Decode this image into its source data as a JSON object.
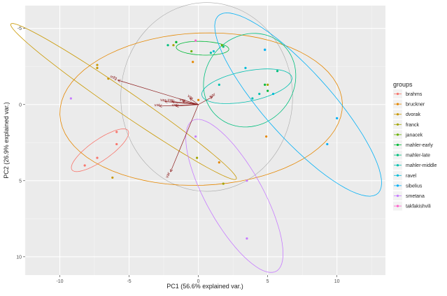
{
  "chart_data": {
    "type": "scatter",
    "title": "",
    "xlabel": "PC1 (56.6% explained var.)",
    "ylabel": "PC2 (26.9% explained var.)",
    "xlim": [
      -12.5,
      13.5
    ],
    "ylim": [
      -6.5,
      11.2
    ],
    "y_reversed": true,
    "x_ticks": [
      -10,
      -5,
      0,
      5,
      10
    ],
    "y_ticks": [
      -5,
      0,
      5,
      10
    ],
    "grid": true,
    "legend_title": "groups",
    "legend_position": "right",
    "series": [
      {
        "name": "brahms",
        "color": "#F8766D",
        "points": [
          [
            -8.2,
            4.0
          ],
          [
            -7.3,
            3.5
          ],
          [
            -5.9,
            1.8
          ],
          [
            -5.9,
            2.6
          ]
        ]
      },
      {
        "name": "bruckner",
        "color": "#E58700",
        "points": [
          [
            -0.4,
            -2.8
          ],
          [
            0.0,
            -0.3
          ],
          [
            1.5,
            3.8
          ],
          [
            4.9,
            2.1
          ]
        ]
      },
      {
        "name": "dvorak",
        "color": "#C99800",
        "points": [
          [
            -7.3,
            -2.6
          ],
          [
            -7.3,
            -2.4
          ],
          [
            -6.5,
            -1.7
          ],
          [
            -6.2,
            4.8
          ]
        ]
      },
      {
        "name": "franck",
        "color": "#A3A500",
        "points": [
          [
            -1.8,
            -3.9
          ],
          [
            -0.1,
            3.5
          ],
          [
            1.8,
            5.2
          ],
          [
            5.0,
            -1.3
          ]
        ]
      },
      {
        "name": "janacek",
        "color": "#6BB100",
        "points": [
          [
            -1.6,
            -4.1
          ],
          [
            -0.5,
            -3.5
          ],
          [
            1.7,
            -3.9
          ]
        ]
      },
      {
        "name": "mahler-early",
        "color": "#00BA38",
        "points": [
          [
            -1.6,
            -4.1
          ],
          [
            4.8,
            -1.3
          ],
          [
            5.0,
            -0.9
          ]
        ]
      },
      {
        "name": "mahler-late",
        "color": "#00BF7D",
        "points": [
          [
            -2.2,
            -3.9
          ],
          [
            1.8,
            -3.8
          ],
          [
            5.7,
            -2.2
          ]
        ]
      },
      {
        "name": "mahler-middle",
        "color": "#00C0AF",
        "points": [
          [
            0.9,
            -3.4
          ],
          [
            1.5,
            -1.3
          ],
          [
            3.9,
            -0.4
          ],
          [
            4.4,
            -0.7
          ]
        ]
      },
      {
        "name": "ravel",
        "color": "#00BCD8",
        "points": [
          [
            1.1,
            -3.5
          ],
          [
            3.4,
            -2.4
          ],
          [
            4.8,
            -3.6
          ],
          [
            5.4,
            -0.7
          ]
        ]
      },
      {
        "name": "sibelius",
        "color": "#00B0F6",
        "points": [
          [
            4.8,
            -3.6
          ],
          [
            9.3,
            2.6
          ],
          [
            10.0,
            0.9
          ]
        ]
      },
      {
        "name": "smetana",
        "color": "#C77CFF",
        "points": [
          [
            -0.2,
            2.1
          ],
          [
            3.5,
            5.0
          ],
          [
            3.5,
            8.8
          ],
          [
            -9.2,
            -0.4
          ]
        ]
      },
      {
        "name": "takfakishvili",
        "color": "#FF61CC",
        "points": [
          [
            -0.2,
            -4.2
          ]
        ]
      }
    ],
    "ellipses": [
      {
        "series": "brahms",
        "cx": -7.1,
        "cy": 3.0,
        "rx": 2.4,
        "ry": 0.7,
        "angle_deg": 148
      },
      {
        "series": "bruckner",
        "cx": 0.2,
        "cy": 0.3,
        "rx": 10.2,
        "ry": 5.0,
        "angle_deg": -2
      },
      {
        "series": "dvorak",
        "cx": -5.4,
        "cy": -0.2,
        "rx": 9.6,
        "ry": 0.75,
        "angle_deg": 32
      },
      {
        "series": "mahler-early",
        "cx": 0.3,
        "cy": -3.7,
        "rx": 1.9,
        "ry": 0.45,
        "angle_deg": 2
      },
      {
        "series": "mahler-late",
        "cx": 3.7,
        "cy": -1.6,
        "rx": 3.4,
        "ry": 3.0,
        "angle_deg": -25
      },
      {
        "series": "mahler-middle",
        "cx": 3.5,
        "cy": -1.2,
        "rx": 3.3,
        "ry": 1.0,
        "angle_deg": -10
      },
      {
        "series": "sibelius",
        "cx": 7.2,
        "cy": 0.0,
        "rx": 8.2,
        "ry": 2.3,
        "angle_deg": 45
      },
      {
        "series": "smetana",
        "cx": 2.6,
        "cy": 6.0,
        "rx": 5.8,
        "ry": 2.0,
        "angle_deg": 58
      }
    ],
    "circle": {
      "cx": 0.6,
      "cy": -0.5,
      "r": 6.2
    },
    "loadings": [
      {
        "label": "mfg",
        "x": -5.8,
        "y": -1.6
      },
      {
        "label": "var",
        "x": -2.8,
        "y": 0.1
      },
      {
        "label": "var",
        "x": -2.4,
        "y": -0.2
      },
      {
        "label": "var",
        "x": -1.9,
        "y": -0.2
      },
      {
        "label": "var",
        "x": -1.6,
        "y": 0.1
      },
      {
        "label": "var",
        "x": -1.1,
        "y": -0.2
      },
      {
        "label": "var",
        "x": -0.6,
        "y": -0.4
      },
      {
        "label": "var",
        "x": 1.0,
        "y": -0.5
      },
      {
        "label": "var",
        "x": -2.0,
        "y": 4.4
      }
    ]
  }
}
